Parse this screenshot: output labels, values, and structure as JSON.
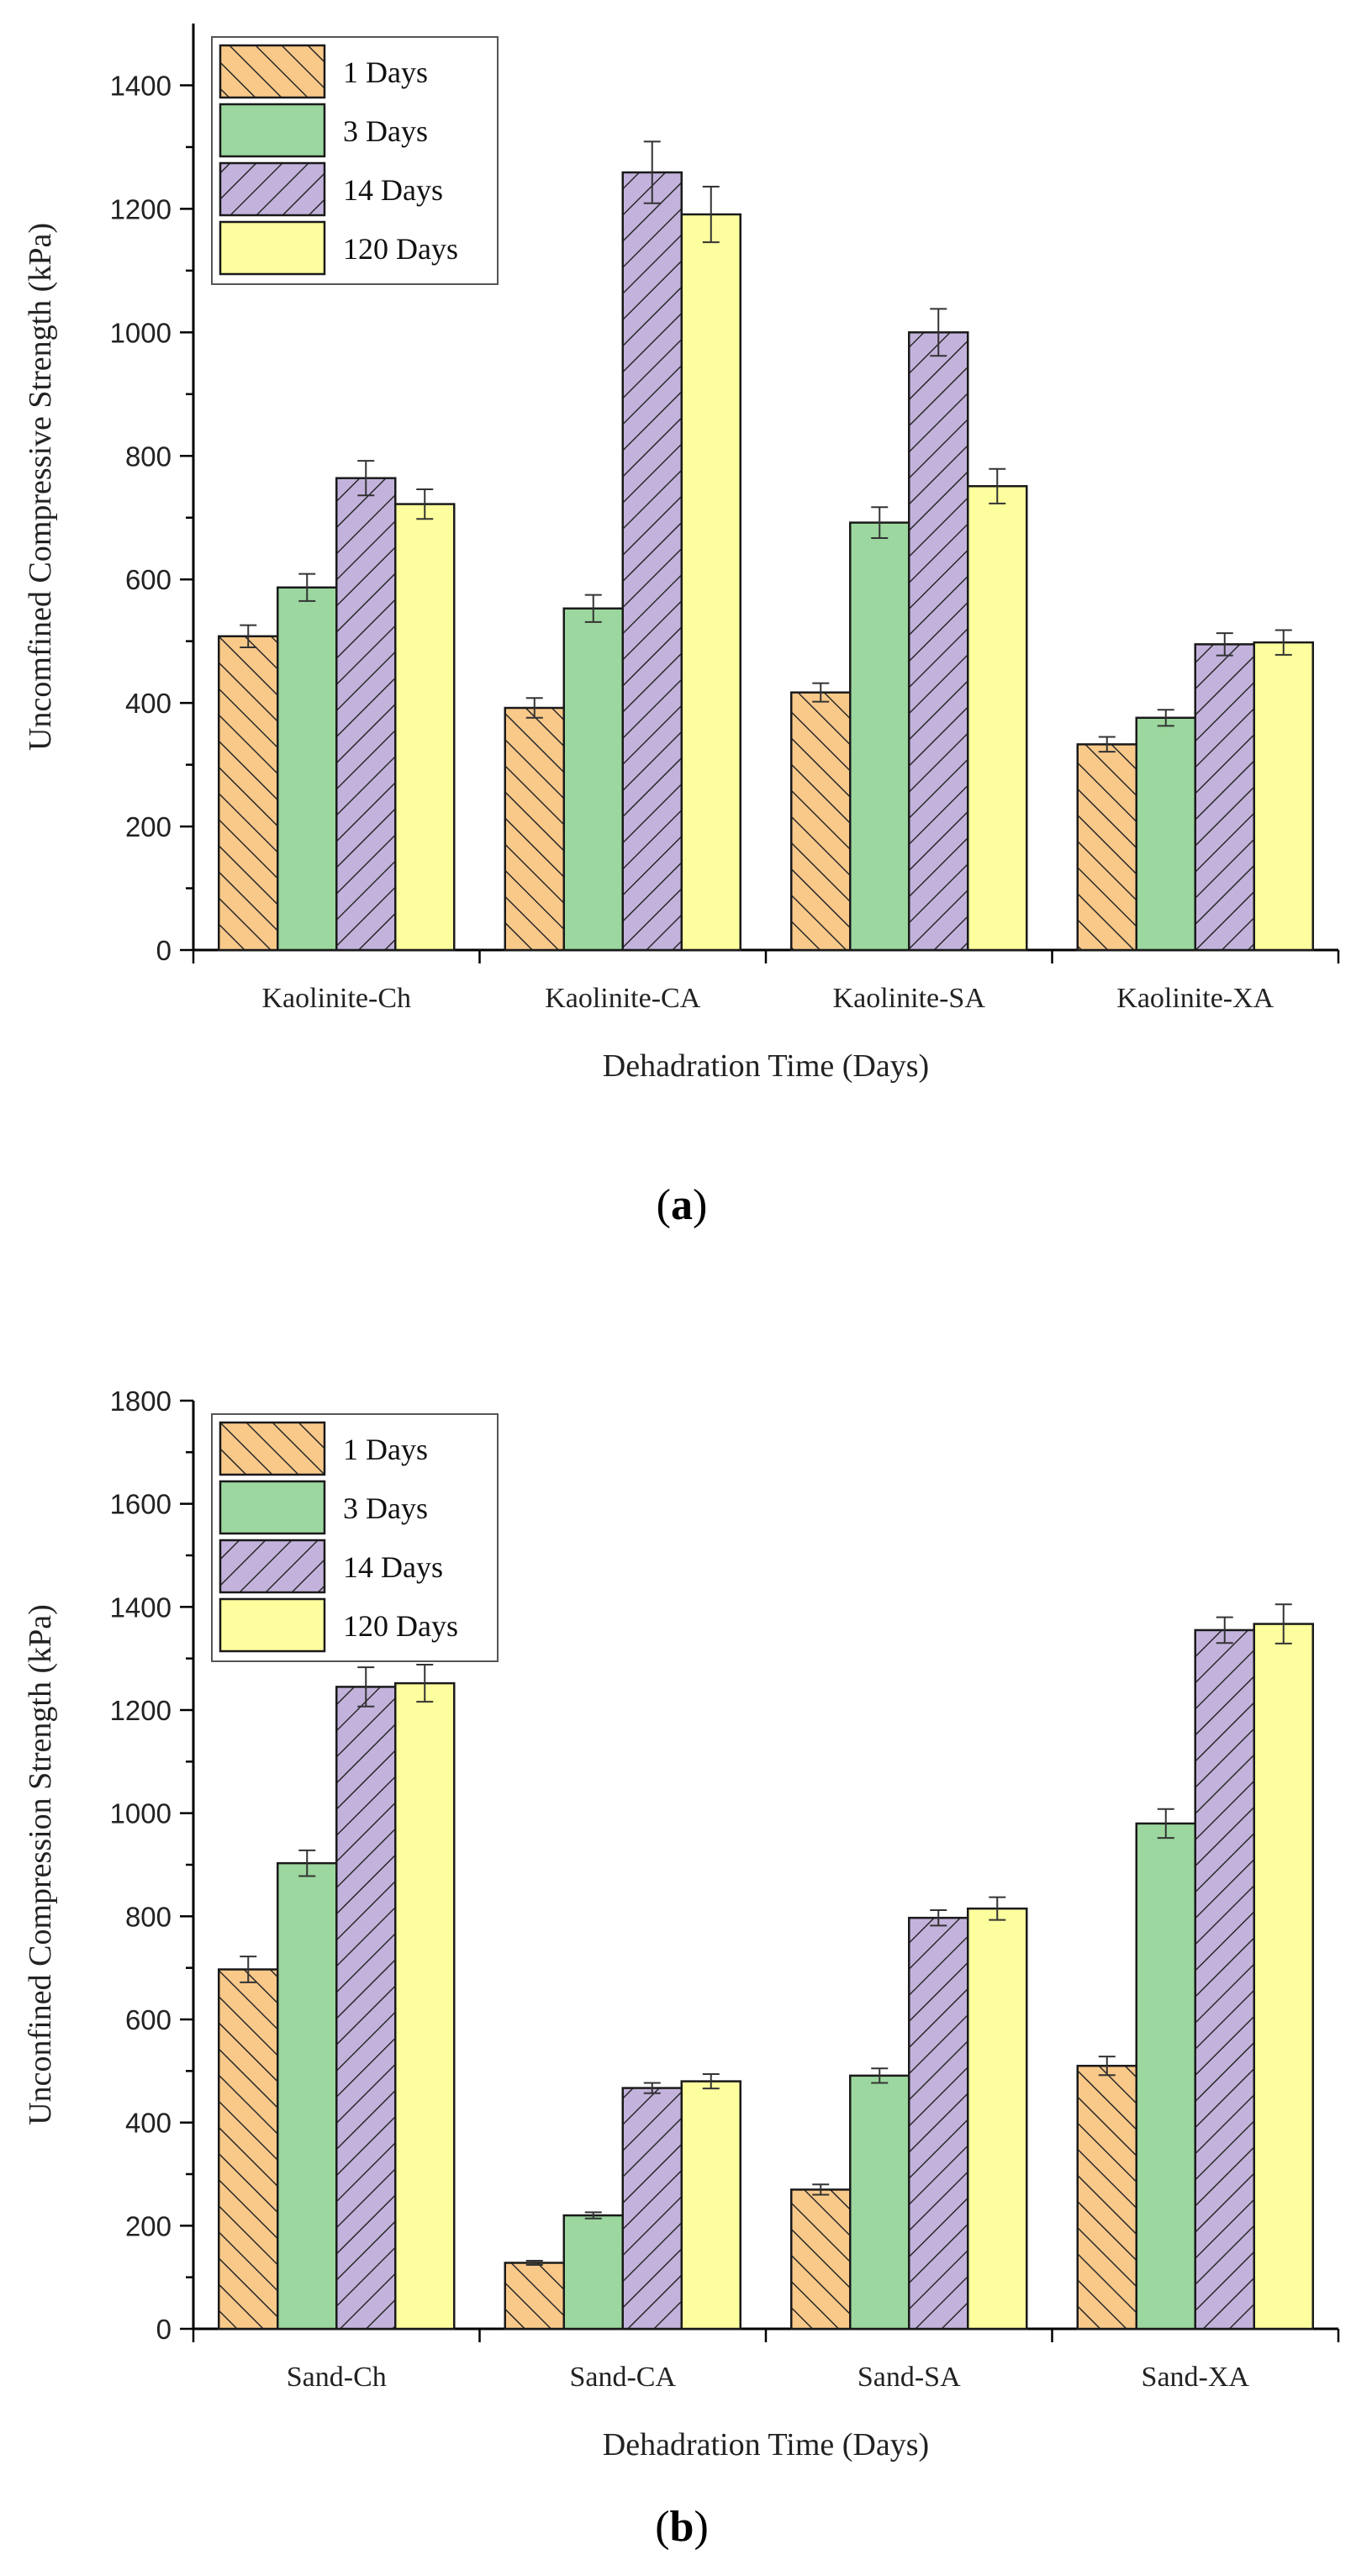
{
  "colors": {
    "s1_fill": "#f9c98a",
    "s1_hatch": "#2a2a2a",
    "s2_fill": "#9bd79e",
    "s3_fill": "#c3b3dc",
    "s3_hatch": "#2a2a2a",
    "s4_fill": "#fdfe9e"
  },
  "chart_data": [
    {
      "panel": "(a)",
      "caption_letter": "a",
      "type": "bar",
      "title": "",
      "xlabel": "Dehadration Time (Days)",
      "ylabel": "Uncomfined Compressive Strength (kPa)",
      "ylim": [
        0,
        1500
      ],
      "yticks": [
        0,
        200,
        400,
        600,
        800,
        1000,
        1200,
        1400
      ],
      "categories": [
        "Kaolinite-Ch",
        "Kaolinite-CA",
        "Kaolinite-SA",
        "Kaolinite-XA"
      ],
      "legend_position": "top-left",
      "series": [
        {
          "name": "1 Days",
          "values": [
            508,
            392,
            417,
            333
          ],
          "errors": [
            18,
            16,
            15,
            12
          ]
        },
        {
          "name": "3 Days",
          "values": [
            587,
            553,
            692,
            376
          ],
          "errors": [
            22,
            22,
            25,
            13
          ]
        },
        {
          "name": "14 Days",
          "values": [
            764,
            1259,
            1000,
            495
          ],
          "errors": [
            28,
            50,
            38,
            18
          ]
        },
        {
          "name": "120 Days",
          "values": [
            722,
            1191,
            751,
            498
          ],
          "errors": [
            24,
            45,
            28,
            20
          ]
        }
      ]
    },
    {
      "panel": "(b)",
      "caption_letter": "b",
      "type": "bar",
      "title": "",
      "xlabel": "Dehadration Time (Days)",
      "ylabel": "Unconfined Compression Strength (kPa)",
      "ylim": [
        0,
        1800
      ],
      "yticks": [
        0,
        200,
        400,
        600,
        800,
        1000,
        1200,
        1400,
        1600,
        1800
      ],
      "categories": [
        "Sand-Ch",
        "Sand-CA",
        "Sand-SA",
        "Sand-XA"
      ],
      "legend_position": "top-left",
      "series": [
        {
          "name": "1 Days",
          "values": [
            697,
            128,
            270,
            510
          ],
          "errors": [
            25,
            4,
            10,
            18
          ]
        },
        {
          "name": "3 Days",
          "values": [
            903,
            220,
            491,
            980
          ],
          "errors": [
            25,
            6,
            14,
            28
          ]
        },
        {
          "name": "14 Days",
          "values": [
            1245,
            467,
            797,
            1355
          ],
          "errors": [
            38,
            10,
            15,
            25
          ]
        },
        {
          "name": "120 Days",
          "values": [
            1252,
            480,
            815,
            1367
          ],
          "errors": [
            36,
            14,
            22,
            38
          ]
        }
      ]
    }
  ]
}
